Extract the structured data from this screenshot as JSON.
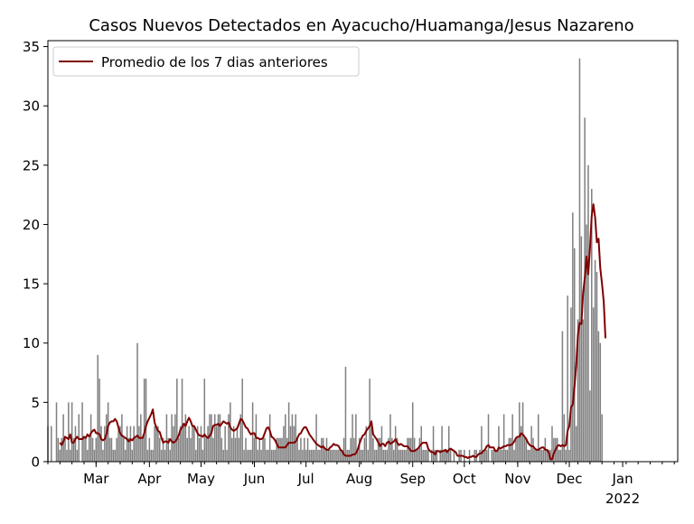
{
  "chart_data": {
    "type": "bar",
    "title": "Casos Nuevos Detectados en Ayacucho/Huamanga/Jesus Nazareno",
    "xlabel": "",
    "ylabel": "",
    "ylim": [
      0,
      35.5
    ],
    "xlim": [
      "2021-02-01",
      "2022-02-02"
    ],
    "y_ticks": [
      0,
      5,
      10,
      15,
      20,
      25,
      30,
      35
    ],
    "x_ticks": [
      {
        "date": "2021-03-01",
        "label": "Mar"
      },
      {
        "date": "2021-04-01",
        "label": "Apr"
      },
      {
        "date": "2021-05-01",
        "label": "May"
      },
      {
        "date": "2021-06-01",
        "label": "Jun"
      },
      {
        "date": "2021-07-01",
        "label": "Jul"
      },
      {
        "date": "2021-08-01",
        "label": "Aug"
      },
      {
        "date": "2021-09-01",
        "label": "Sep"
      },
      {
        "date": "2021-10-01",
        "label": "Oct"
      },
      {
        "date": "2021-11-01",
        "label": "Nov"
      },
      {
        "date": "2021-12-01",
        "label": "Dec"
      },
      {
        "date": "2022-01-01",
        "label": "Jan"
      }
    ],
    "x_year_label": "2022",
    "grid": false,
    "legend": {
      "placement": "upper-left",
      "entries": [
        "Promedio de los 7 dias anteriores"
      ]
    },
    "colors": {
      "bars": "#808080",
      "line": "#800000"
    },
    "series": [
      {
        "type": "bar",
        "x_start": "2021-02-01",
        "values": [
          3,
          0,
          3,
          0,
          0,
          5,
          2,
          1,
          2,
          4,
          2,
          1,
          5,
          1,
          5,
          2,
          3,
          1,
          4,
          0,
          5,
          2,
          2,
          1,
          2,
          4,
          2,
          1,
          2,
          9,
          7,
          3,
          1,
          3,
          4,
          5,
          2,
          2,
          1,
          1,
          2,
          3,
          3,
          4,
          2,
          1,
          3,
          2,
          3,
          1,
          3,
          2,
          10,
          3,
          4,
          2,
          7,
          7,
          1,
          2,
          1,
          1,
          3,
          3,
          3,
          2,
          1,
          2,
          1,
          4,
          2,
          1,
          4,
          3,
          4,
          7,
          2,
          3,
          7,
          3,
          4,
          2,
          3,
          2,
          3,
          3,
          1,
          3,
          2,
          3,
          1,
          7,
          2,
          3,
          4,
          4,
          2,
          4,
          3,
          4,
          4,
          2,
          1,
          3,
          1,
          4,
          5,
          2,
          3,
          2,
          3,
          2,
          4,
          7,
          1,
          2,
          1,
          1,
          1,
          5,
          2,
          4,
          1,
          2,
          1,
          2,
          2,
          1,
          1,
          4,
          1,
          1,
          1,
          2,
          2,
          2,
          2,
          3,
          4,
          2,
          5,
          3,
          4,
          3,
          4,
          2,
          1,
          2,
          1,
          2,
          1,
          2,
          1,
          1,
          1,
          1,
          4,
          1,
          1,
          2,
          2,
          1,
          2,
          1,
          1,
          1,
          1,
          1,
          1,
          1,
          1,
          1,
          2,
          8,
          1,
          1,
          2,
          4,
          2,
          4,
          1,
          2,
          1,
          1,
          2,
          3,
          1,
          7,
          3,
          2,
          1,
          1,
          2,
          2,
          3,
          1,
          1,
          1,
          2,
          4,
          2,
          1,
          3,
          2,
          1,
          1,
          1,
          1,
          1,
          2,
          2,
          2,
          5,
          2,
          1,
          1,
          2,
          3,
          1,
          1,
          1,
          1,
          0,
          1,
          3,
          1,
          1,
          0,
          1,
          3,
          1,
          1,
          1,
          3,
          1,
          0,
          1,
          0,
          0,
          1,
          1,
          0,
          1,
          0,
          0,
          1,
          0,
          0,
          1,
          1,
          0,
          1,
          3,
          1,
          1,
          1,
          4,
          0,
          1,
          1,
          1,
          1,
          3,
          1,
          1,
          4,
          1,
          1,
          2,
          2,
          4,
          1,
          2,
          2,
          5,
          3,
          5,
          2,
          2,
          1,
          1,
          3,
          2,
          1,
          1,
          4,
          1,
          1,
          1,
          2,
          1,
          1,
          1,
          3,
          2,
          2,
          2,
          1,
          1,
          11,
          4,
          1,
          14,
          1,
          13,
          21,
          18,
          3,
          12,
          34,
          19,
          12,
          29,
          20,
          25,
          6,
          23,
          13,
          17,
          16,
          11,
          10,
          4
        ]
      },
      {
        "type": "line",
        "name": "Promedio de los 7 dias anteriores",
        "x_start": "2021-02-08",
        "values": [
          1.6,
          1.4,
          1.7,
          2.1,
          2.0,
          1.9,
          2.3,
          1.6,
          1.6,
          1.9,
          2.1,
          1.9,
          1.9,
          1.9,
          2.1,
          2.0,
          2.3,
          2.1,
          2.4,
          2.6,
          2.7,
          2.4,
          2.4,
          2.3,
          1.9,
          1.8,
          1.9,
          2.3,
          3.0,
          3.3,
          3.4,
          3.4,
          3.6,
          3.4,
          2.9,
          2.4,
          2.2,
          2.1,
          2.0,
          1.9,
          1.7,
          1.9,
          1.8,
          2.0,
          2.1,
          2.2,
          2.0,
          2.0,
          2.0,
          2.4,
          3.0,
          3.4,
          3.7,
          4.0,
          4.4,
          3.3,
          2.9,
          2.6,
          2.5,
          2.0,
          1.6,
          1.7,
          1.7,
          1.6,
          1.9,
          1.7,
          1.6,
          1.7,
          1.9,
          2.2,
          2.7,
          2.9,
          3.2,
          3.0,
          3.4,
          3.7,
          3.4,
          3.0,
          3.0,
          2.7,
          2.4,
          2.2,
          2.2,
          2.1,
          2.3,
          2.1,
          2.0,
          2.2,
          2.4,
          3.0,
          3.1,
          3.1,
          3.2,
          3.0,
          3.2,
          3.4,
          3.3,
          3.2,
          3.3,
          2.9,
          2.7,
          2.6,
          2.7,
          2.8,
          3.2,
          3.6,
          3.5,
          3.2,
          2.9,
          2.8,
          2.5,
          2.3,
          2.4,
          2.4,
          2.0,
          2.0,
          1.9,
          1.9,
          2.0,
          2.4,
          2.8,
          2.9,
          2.6,
          2.1,
          2.0,
          1.8,
          1.5,
          1.2,
          1.2,
          1.2,
          1.2,
          1.2,
          1.4,
          1.6,
          1.6,
          1.6,
          1.6,
          1.7,
          2.0,
          2.3,
          2.4,
          2.7,
          2.9,
          2.9,
          2.6,
          2.3,
          2.1,
          1.9,
          1.7,
          1.5,
          1.4,
          1.3,
          1.2,
          1.3,
          1.1,
          1.0,
          1.0,
          1.2,
          1.3,
          1.5,
          1.4,
          1.4,
          1.3,
          1.0,
          0.9,
          0.6,
          0.5,
          0.5,
          0.5,
          0.5,
          0.6,
          0.6,
          0.7,
          1.0,
          1.5,
          1.9,
          2.2,
          2.3,
          2.6,
          2.8,
          3.0,
          3.4,
          2.3,
          2.1,
          1.9,
          1.6,
          1.3,
          1.5,
          1.5,
          1.3,
          1.6,
          1.7,
          1.5,
          1.6,
          1.7,
          1.9,
          1.6,
          1.4,
          1.5,
          1.4,
          1.3,
          1.3,
          1.3,
          1.1,
          0.9,
          0.9,
          0.9,
          1.0,
          1.1,
          1.3,
          1.5,
          1.6,
          1.6,
          1.6,
          1.1,
          0.9,
          0.8,
          0.8,
          0.6,
          0.9,
          0.9,
          0.8,
          0.9,
          0.9,
          1.0,
          0.8,
          1.0,
          1.1,
          1.0,
          0.9,
          0.8,
          0.5,
          0.5,
          0.5,
          0.5,
          0.4,
          0.4,
          0.3,
          0.4,
          0.4,
          0.5,
          0.4,
          0.4,
          0.6,
          0.7,
          0.7,
          0.9,
          1.0,
          1.3,
          1.4,
          1.2,
          1.2,
          1.2,
          0.9,
          0.9,
          1.2,
          1.1,
          1.2,
          1.3,
          1.3,
          1.4,
          1.4,
          1.4,
          1.5,
          1.7,
          2.0,
          2.1,
          2.1,
          2.4,
          2.3,
          2.1,
          1.9,
          1.6,
          1.4,
          1.3,
          1.3,
          1.1,
          1.0,
          1.0,
          1.1,
          1.2,
          1.2,
          1.0,
          1.0,
          0.8,
          0.2,
          0.2,
          0.7,
          1.0,
          1.3,
          1.4,
          1.3,
          1.4,
          1.3,
          1.4,
          2.6,
          3.0,
          4.6,
          4.8,
          6.3,
          8.1,
          10.7,
          11.7,
          11.6,
          14.2,
          15.5,
          17.3,
          15.8,
          18.0,
          20.7,
          21.7,
          20.6,
          18.5,
          18.8,
          16.3,
          15.0,
          13.5,
          10.4
        ]
      }
    ]
  }
}
